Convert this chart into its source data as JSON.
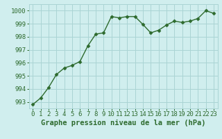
{
  "x": [
    0,
    1,
    2,
    3,
    4,
    5,
    6,
    7,
    8,
    9,
    10,
    11,
    12,
    13,
    14,
    15,
    16,
    17,
    18,
    19,
    20,
    21,
    22,
    23
  ],
  "y": [
    992.8,
    993.3,
    994.1,
    995.1,
    995.6,
    995.8,
    996.1,
    997.3,
    998.2,
    998.3,
    999.55,
    999.45,
    999.55,
    999.55,
    998.95,
    998.3,
    998.5,
    998.9,
    999.2,
    999.1,
    999.2,
    999.4,
    1000.0,
    999.8
  ],
  "line_color": "#2d6a2d",
  "marker": "D",
  "marker_size": 2.5,
  "bg_color": "#d0eeee",
  "grid_color": "#aad4d4",
  "xlabel": "Graphe pression niveau de la mer (hPa)",
  "xlabel_fontsize": 7.5,
  "ylabel_ticks": [
    993,
    994,
    995,
    996,
    997,
    998,
    999,
    1000
  ],
  "xlim": [
    -0.5,
    23.5
  ],
  "ylim": [
    992.5,
    1000.5
  ],
  "tick_fontsize": 6.5,
  "tick_color": "#2d6a2d",
  "line_width": 1.0
}
